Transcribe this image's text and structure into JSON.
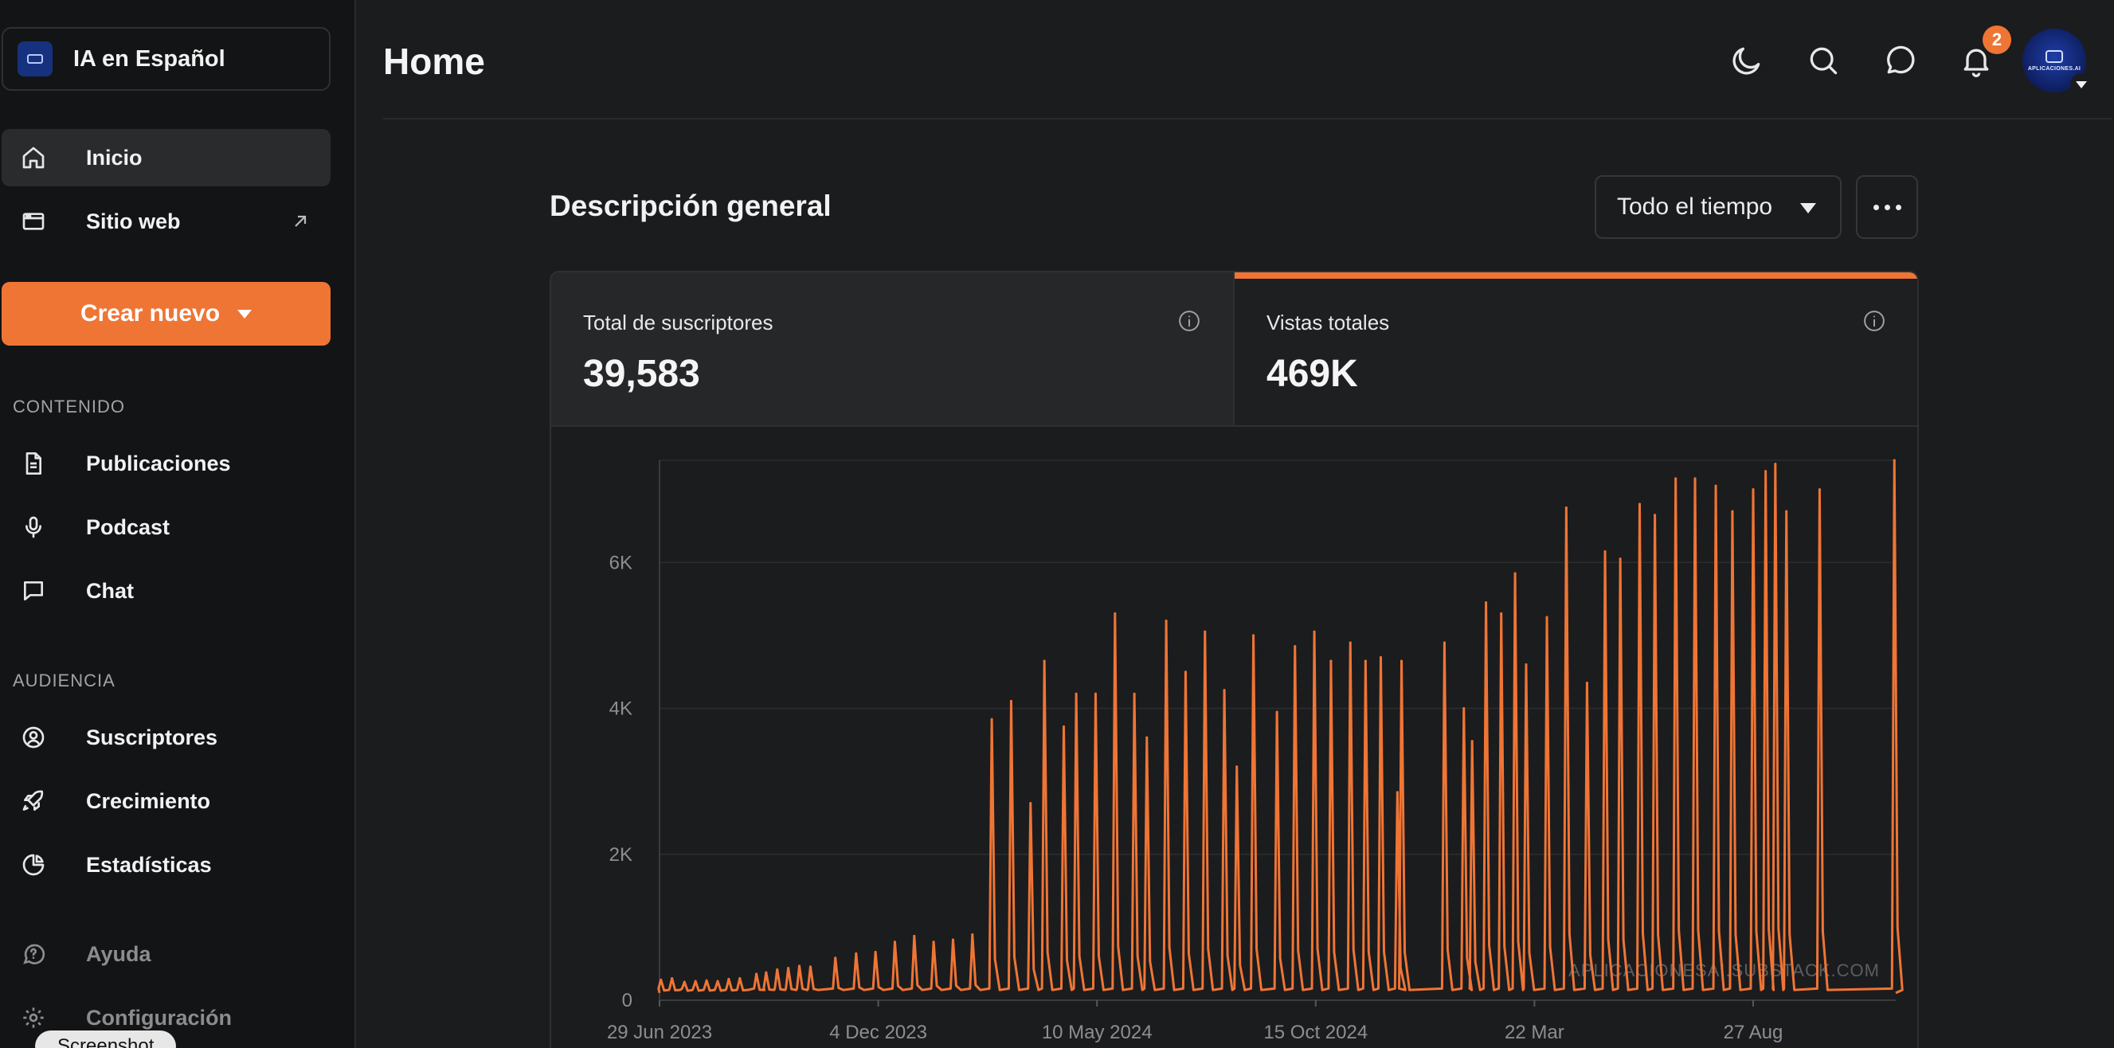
{
  "sidebar": {
    "publication_name": "IA en Español",
    "nav_top": [
      {
        "label": "Inicio",
        "icon": "home-icon"
      },
      {
        "label": "Sitio web",
        "icon": "browser-window-icon"
      }
    ],
    "create_label": "Crear nuevo",
    "section_content": "CONTENIDO",
    "content_items": [
      {
        "label": "Publicaciones",
        "icon": "document-icon"
      },
      {
        "label": "Podcast",
        "icon": "microphone-icon"
      },
      {
        "label": "Chat",
        "icon": "chat-bubble-icon"
      }
    ],
    "section_audience": "AUDIENCIA",
    "audience_items": [
      {
        "label": "Suscriptores",
        "icon": "user-circle-icon"
      },
      {
        "label": "Crecimiento",
        "icon": "rocket-icon"
      },
      {
        "label": "Estadísticas",
        "icon": "pie-chart-icon"
      }
    ],
    "bottom_items": [
      {
        "label": "Ayuda",
        "icon": "help-icon"
      },
      {
        "label": "Configuración",
        "icon": "settings-icon"
      }
    ],
    "screenshot_tooltip": "Screenshot"
  },
  "header": {
    "title": "Home",
    "notification_count": "2",
    "avatar_text": "APLICACIONES.AI"
  },
  "overview": {
    "title": "Descripción general",
    "range_label": "Todo el tiempo",
    "stats": [
      {
        "label": "Total de suscriptores",
        "value": "39,583"
      },
      {
        "label": "Vistas totales",
        "value": "469K"
      }
    ]
  },
  "colors": {
    "accent": "#ef7535",
    "background": "#1b1c1e",
    "sidebar": "#131415"
  },
  "chart_data": {
    "type": "line",
    "series": [
      {
        "name": "",
        "color": "#ef7535"
      }
    ],
    "ylim": [
      0,
      7400
    ],
    "yticks": [
      {
        "value": 0,
        "label": "0"
      },
      {
        "value": 2000,
        "label": "2K"
      },
      {
        "value": 4000,
        "label": "4K"
      },
      {
        "value": 6000,
        "label": "6K"
      }
    ],
    "xticks": [
      {
        "date": "2023-06-29",
        "label": "29 Jun 2023"
      },
      {
        "date": "2023-12-04",
        "label": "4 Dec 2023"
      },
      {
        "date": "2024-05-10",
        "label": "10 May 2024"
      },
      {
        "date": "2024-10-15",
        "label": "15 Oct 2024"
      },
      {
        "date": "2025-03-22",
        "label": "22 Mar"
      },
      {
        "date": "2025-08-27",
        "label": "27 Aug"
      }
    ],
    "x_start": "2023-06-29",
    "x_end": "2025-12-08",
    "baseline": 100,
    "watermark": "APLICACIONESAI.SUBSTACK.COM",
    "peaks": [
      {
        "date": "2023-06-30",
        "value": 280
      },
      {
        "date": "2023-07-08",
        "value": 300
      },
      {
        "date": "2023-07-17",
        "value": 250
      },
      {
        "date": "2023-07-25",
        "value": 260
      },
      {
        "date": "2023-08-02",
        "value": 270
      },
      {
        "date": "2023-08-10",
        "value": 260
      },
      {
        "date": "2023-08-18",
        "value": 290
      },
      {
        "date": "2023-08-26",
        "value": 300
      },
      {
        "date": "2023-09-07",
        "value": 360
      },
      {
        "date": "2023-09-14",
        "value": 380
      },
      {
        "date": "2023-09-22",
        "value": 420
      },
      {
        "date": "2023-09-30",
        "value": 440
      },
      {
        "date": "2023-10-08",
        "value": 470
      },
      {
        "date": "2023-10-16",
        "value": 460
      },
      {
        "date": "2023-11-03",
        "value": 580
      },
      {
        "date": "2023-11-18",
        "value": 640
      },
      {
        "date": "2023-12-02",
        "value": 660
      },
      {
        "date": "2023-12-16",
        "value": 800
      },
      {
        "date": "2023-12-30",
        "value": 880
      },
      {
        "date": "2024-01-13",
        "value": 800
      },
      {
        "date": "2024-01-27",
        "value": 830
      },
      {
        "date": "2024-02-10",
        "value": 900
      },
      {
        "date": "2024-02-24",
        "value": 3850
      },
      {
        "date": "2024-03-09",
        "value": 4100
      },
      {
        "date": "2024-03-23",
        "value": 2700
      },
      {
        "date": "2024-04-02",
        "value": 4650
      },
      {
        "date": "2024-04-16",
        "value": 3750
      },
      {
        "date": "2024-04-25",
        "value": 4200
      },
      {
        "date": "2024-05-09",
        "value": 4200
      },
      {
        "date": "2024-05-23",
        "value": 5300
      },
      {
        "date": "2024-06-06",
        "value": 4200
      },
      {
        "date": "2024-06-15",
        "value": 3600
      },
      {
        "date": "2024-06-29",
        "value": 5200
      },
      {
        "date": "2024-07-13",
        "value": 4500
      },
      {
        "date": "2024-07-27",
        "value": 5050
      },
      {
        "date": "2024-08-10",
        "value": 4250
      },
      {
        "date": "2024-08-19",
        "value": 3200
      },
      {
        "date": "2024-08-31",
        "value": 5000
      },
      {
        "date": "2024-09-17",
        "value": 3950
      },
      {
        "date": "2024-09-30",
        "value": 4850
      },
      {
        "date": "2024-10-14",
        "value": 5050
      },
      {
        "date": "2024-10-26",
        "value": 4650
      },
      {
        "date": "2024-11-09",
        "value": 4900
      },
      {
        "date": "2024-11-20",
        "value": 4650
      },
      {
        "date": "2024-12-01",
        "value": 4700
      },
      {
        "date": "2024-12-13",
        "value": 2850
      },
      {
        "date": "2024-12-16",
        "value": 4650
      },
      {
        "date": "2025-01-16",
        "value": 4900
      },
      {
        "date": "2025-01-30",
        "value": 4000
      },
      {
        "date": "2025-02-05",
        "value": 3550
      },
      {
        "date": "2025-02-15",
        "value": 5450
      },
      {
        "date": "2025-02-26",
        "value": 5300
      },
      {
        "date": "2025-03-08",
        "value": 5850
      },
      {
        "date": "2025-03-16",
        "value": 4600
      },
      {
        "date": "2025-03-31",
        "value": 5250
      },
      {
        "date": "2025-04-14",
        "value": 6750
      },
      {
        "date": "2025-04-29",
        "value": 4350
      },
      {
        "date": "2025-05-12",
        "value": 6150
      },
      {
        "date": "2025-05-23",
        "value": 6050
      },
      {
        "date": "2025-06-06",
        "value": 6800
      },
      {
        "date": "2025-06-17",
        "value": 6650
      },
      {
        "date": "2025-07-02",
        "value": 7150
      },
      {
        "date": "2025-07-16",
        "value": 7150
      },
      {
        "date": "2025-07-31",
        "value": 7050
      },
      {
        "date": "2025-08-12",
        "value": 6700
      },
      {
        "date": "2025-08-27",
        "value": 7000
      },
      {
        "date": "2025-09-05",
        "value": 7250
      },
      {
        "date": "2025-09-12",
        "value": 7350
      },
      {
        "date": "2025-09-20",
        "value": 6700
      },
      {
        "date": "2025-10-14",
        "value": 7000
      },
      {
        "date": "2025-12-07",
        "value": 7400
      }
    ]
  }
}
